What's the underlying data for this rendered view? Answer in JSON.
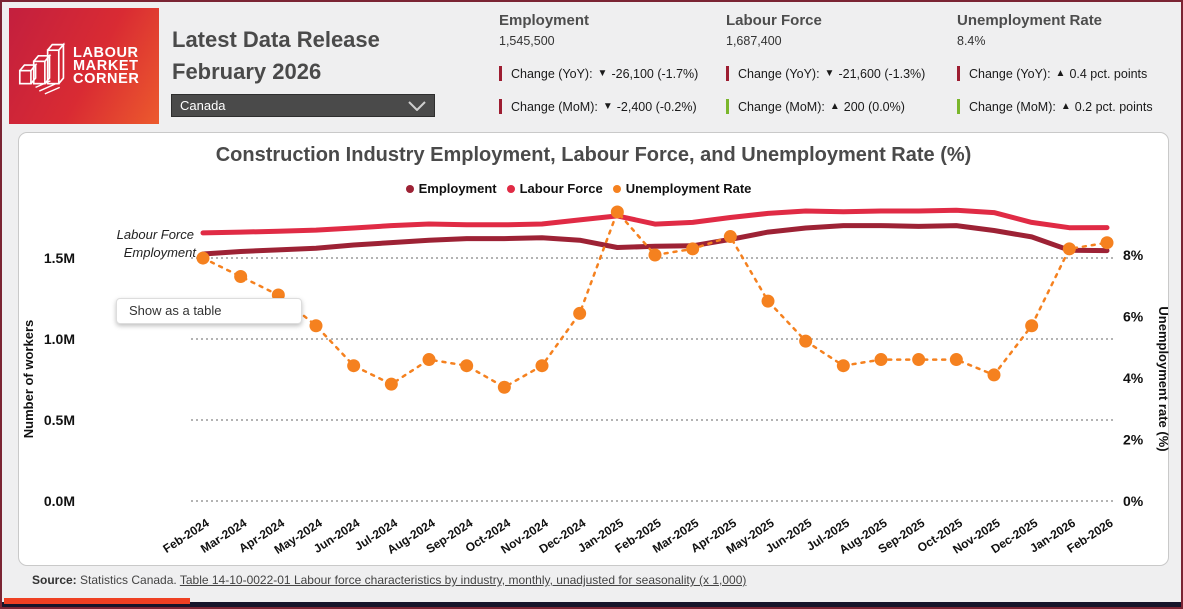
{
  "header": {
    "logo": {
      "lines": [
        "LABOUR",
        "MARKET",
        "CORNER"
      ]
    },
    "title_line1": "Latest Data Release",
    "title_line2": "February 2026",
    "region_selector": {
      "value": "Canada"
    }
  },
  "stats": [
    {
      "label": "Employment",
      "value": "1,545,500",
      "changes": [
        {
          "label": "Change (YoY):",
          "arrow": "▼",
          "value": "-26,100 (-1.7%)",
          "bar_color": "#9d1d31"
        },
        {
          "label": "Change (MoM):",
          "arrow": "▼",
          "value": "-2,400 (-0.2%)",
          "bar_color": "#9d1d31"
        }
      ]
    },
    {
      "label": "Labour Force",
      "value": "1,687,400",
      "changes": [
        {
          "label": "Change (YoY):",
          "arrow": "▼",
          "value": "-21,600 (-1.3%)",
          "bar_color": "#9d1d31"
        },
        {
          "label": "Change (MoM):",
          "arrow": "▲",
          "value": "200 (0.0%)",
          "bar_color": "#7ab62c"
        }
      ]
    },
    {
      "label": "Unemployment Rate",
      "value": "8.4%",
      "changes": [
        {
          "label": "Change (YoY):",
          "arrow": "▲",
          "value": "0.4 pct. points",
          "bar_color": "#9d1d31"
        },
        {
          "label": "Change (MoM):",
          "arrow": "▲",
          "value": "0.2 pct. points",
          "bar_color": "#7ab62c"
        }
      ]
    }
  ],
  "chart": {
    "title": "Construction Industry Employment, Labour Force, and Unemployment Rate (%)",
    "legend": [
      {
        "label": "Employment",
        "color": "#9d2235"
      },
      {
        "label": "Labour Force",
        "color": "#e02b45"
      },
      {
        "label": "Unemployment Rate",
        "color": "#f5811f"
      }
    ],
    "annotations": {
      "labour_force": "Labour Force",
      "employment": "Employment"
    },
    "table_button": "Show as a table"
  },
  "chart_data": {
    "type": "line",
    "title": "Construction Industry Employment, Labour Force, and Unemployment Rate (%)",
    "xlabel": "",
    "ylabel_left": "Number of workers",
    "ylabel_right": "Unemployment rate (%)",
    "grid": "horizontal-dotted",
    "legend_position": "top-center",
    "left_ylim_millions": [
      0,
      1.8
    ],
    "right_ylim_percent": [
      0,
      9.5
    ],
    "left_ticks": [
      {
        "v": 0.0,
        "label": "0.0M"
      },
      {
        "v": 0.5,
        "label": "0.5M"
      },
      {
        "v": 1.0,
        "label": "1.0M"
      },
      {
        "v": 1.5,
        "label": "1.5M"
      }
    ],
    "right_ticks": [
      {
        "v": 0,
        "label": "0%"
      },
      {
        "v": 2,
        "label": "2%"
      },
      {
        "v": 4,
        "label": "4%"
      },
      {
        "v": 6,
        "label": "6%"
      },
      {
        "v": 8,
        "label": "8%"
      }
    ],
    "categories": [
      "Feb-2024",
      "Mar-2024",
      "Apr-2024",
      "May-2024",
      "Jun-2024",
      "Jul-2024",
      "Aug-2024",
      "Sep-2024",
      "Oct-2024",
      "Nov-2024",
      "Dec-2024",
      "Jan-2025",
      "Feb-2025",
      "Mar-2025",
      "Apr-2025",
      "May-2025",
      "Jun-2025",
      "Jul-2025",
      "Aug-2025",
      "Sep-2025",
      "Oct-2025",
      "Nov-2025",
      "Dec-2025",
      "Jan-2026",
      "Feb-2026"
    ],
    "series": [
      {
        "name": "Employment",
        "axis": "left",
        "unit": "millions of workers",
        "color": "#9d2235",
        "style": "solid",
        "values": [
          1.525,
          1.54,
          1.55,
          1.56,
          1.58,
          1.595,
          1.61,
          1.62,
          1.62,
          1.625,
          1.61,
          1.565,
          1.572,
          1.575,
          1.615,
          1.66,
          1.685,
          1.7,
          1.7,
          1.695,
          1.7,
          1.67,
          1.63,
          1.548,
          1.5455
        ]
      },
      {
        "name": "Labour Force",
        "axis": "left",
        "unit": "millions of workers",
        "color": "#e02b45",
        "style": "solid",
        "values": [
          1.655,
          1.66,
          1.665,
          1.672,
          1.685,
          1.7,
          1.71,
          1.705,
          1.705,
          1.71,
          1.735,
          1.76,
          1.709,
          1.72,
          1.75,
          1.775,
          1.79,
          1.785,
          1.79,
          1.79,
          1.795,
          1.78,
          1.72,
          1.687,
          1.6874
        ]
      },
      {
        "name": "Unemployment Rate",
        "axis": "right",
        "unit": "%",
        "color": "#f5811f",
        "style": "dashed-markers",
        "values": [
          7.9,
          7.3,
          6.7,
          5.7,
          4.4,
          3.8,
          4.6,
          4.4,
          3.7,
          4.4,
          6.1,
          9.4,
          8.0,
          8.2,
          8.6,
          6.5,
          5.2,
          4.4,
          4.6,
          4.6,
          4.6,
          4.1,
          5.7,
          8.2,
          8.4
        ]
      }
    ]
  },
  "footer": {
    "source_label": "Source:",
    "source_text": " Statistics Canada. ",
    "source_link": "Table 14-10-0022-01 Labour force characteristics by industry, monthly, unadjusted for seasonality (x 1,000)"
  }
}
